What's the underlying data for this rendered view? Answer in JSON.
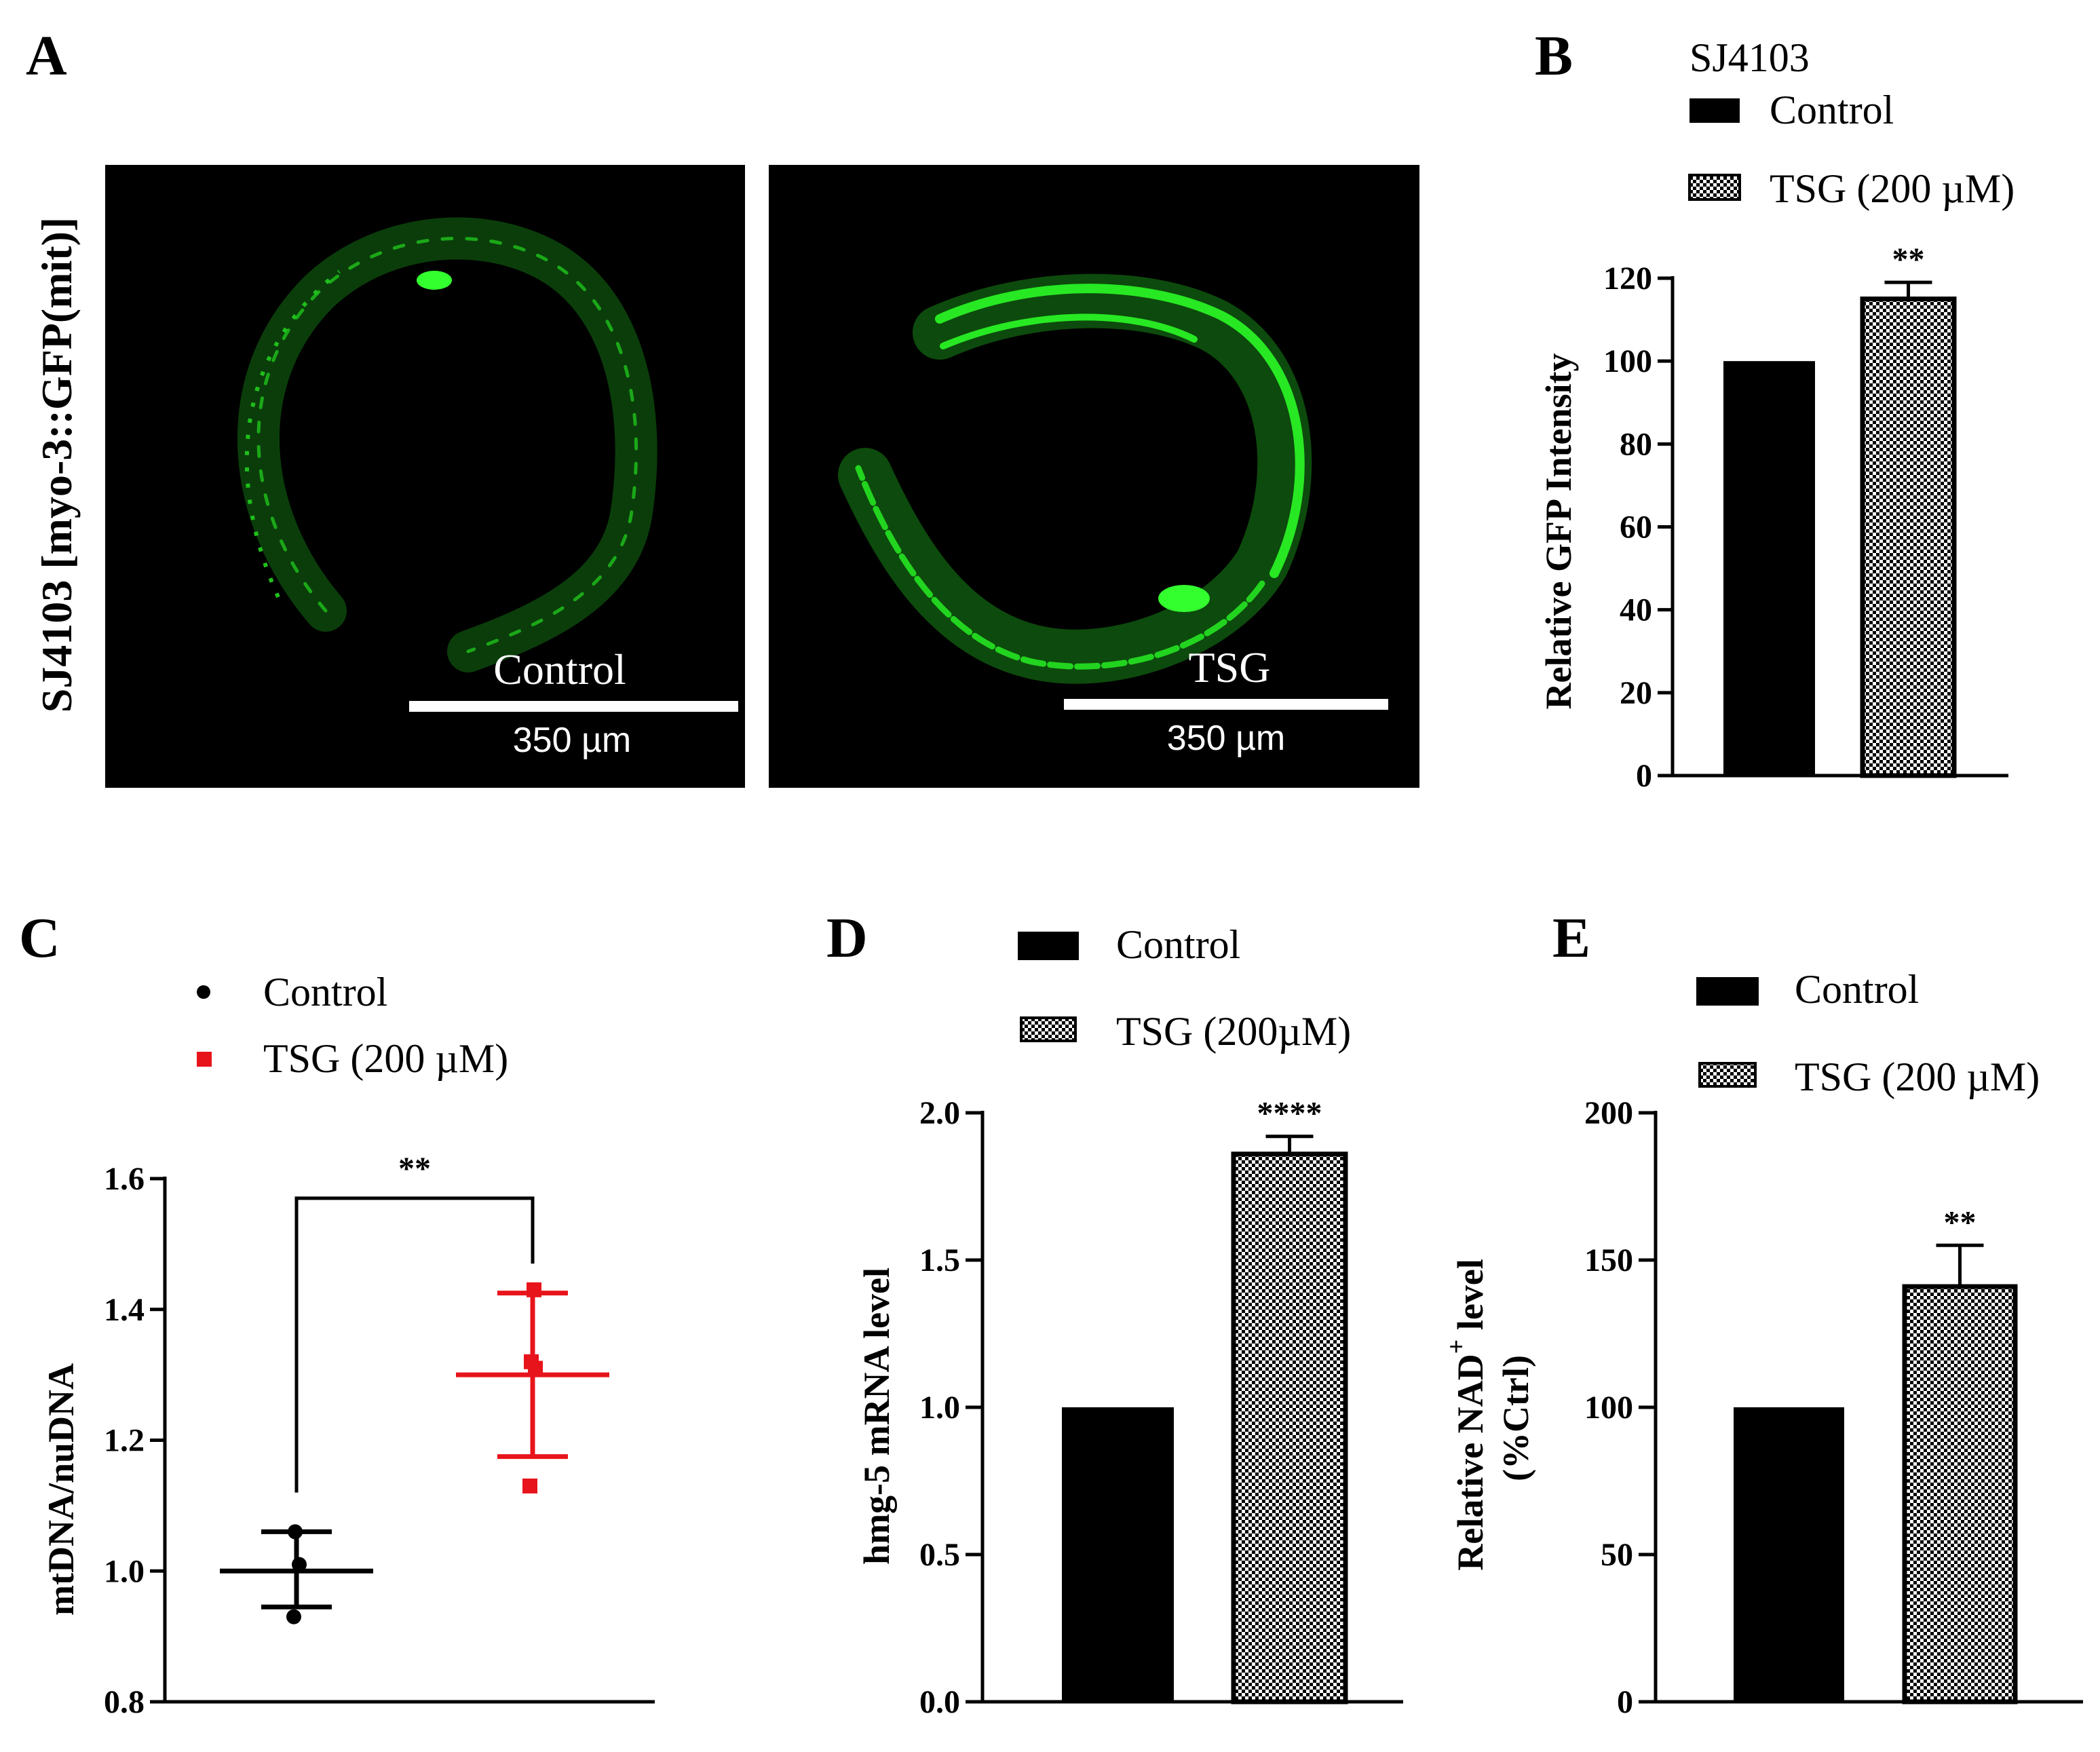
{
  "panel_labels": {
    "a": "A",
    "b": "B",
    "c": "C",
    "d": "D",
    "e": "E"
  },
  "panel_a": {
    "ylabel": "SJ4103 [myo-3::GFP(mit)]",
    "left_image_label": "Control",
    "right_image_label": "TSG",
    "scale_bar_text": "350 µm",
    "image_background": "#000000",
    "fluorescence_color": "#22e51f"
  },
  "colors": {
    "control": "#000000",
    "tsg_red": "#e8141b",
    "pattern_dark": "#000000",
    "pattern_light": "#ffffff"
  },
  "chart_data": [
    {
      "id": "B",
      "type": "bar",
      "title": "SJ4103",
      "legend": [
        "Control",
        "TSG (200 µM)"
      ],
      "categories": [
        "Control",
        "TSG (200 µM)"
      ],
      "values": [
        100,
        115
      ],
      "errors": [
        0,
        4
      ],
      "significance": "**",
      "ylabel": "Relative GFP Intensity",
      "ylim": [
        0,
        120
      ],
      "yticks": [
        "0",
        "20",
        "40",
        "60",
        "80",
        "100",
        "120"
      ]
    },
    {
      "id": "C",
      "type": "scatter",
      "legend": [
        "Control",
        "TSG (200 µM)"
      ],
      "series": [
        {
          "name": "Control",
          "points": [
            0.93,
            1.01,
            1.06
          ],
          "mean": 1.0,
          "sd_low": 0.945,
          "sd_high": 1.06
        },
        {
          "name": "TSG (200 µM)",
          "points": [
            1.13,
            1.31,
            1.32,
            1.43
          ],
          "mean": 1.3,
          "sd_low": 1.175,
          "sd_high": 1.425
        }
      ],
      "significance": "**",
      "ylabel": "mtDNA/nuDNA",
      "ylim": [
        0.8,
        1.6
      ],
      "yticks": [
        "0.8",
        "1.0",
        "1.2",
        "1.4",
        "1.6"
      ]
    },
    {
      "id": "D",
      "type": "bar",
      "legend": [
        "Control",
        "TSG (200µM)"
      ],
      "categories": [
        "Control",
        "TSG (200µM)"
      ],
      "values": [
        1.0,
        1.86
      ],
      "errors": [
        0,
        0.06
      ],
      "significance": "****",
      "ylabel": "hmg-5 mRNA level",
      "ylim": [
        0,
        2.0
      ],
      "yticks": [
        "0.0",
        "0.5",
        "1.0",
        "1.5",
        "2.0"
      ]
    },
    {
      "id": "E",
      "type": "bar",
      "legend": [
        "Control",
        "TSG (200 µM)"
      ],
      "categories": [
        "Control",
        "TSG (200 µM)"
      ],
      "values": [
        100,
        141
      ],
      "errors": [
        0,
        14
      ],
      "significance": "**",
      "ylabel_prefix": "Relative NAD",
      "ylabel_sup": "+",
      "ylabel_suffix": " level",
      "ylabel2": "(%Ctrl)",
      "ylim": [
        0,
        200
      ],
      "yticks": [
        "0",
        "50",
        "100",
        "150",
        "200"
      ]
    }
  ]
}
